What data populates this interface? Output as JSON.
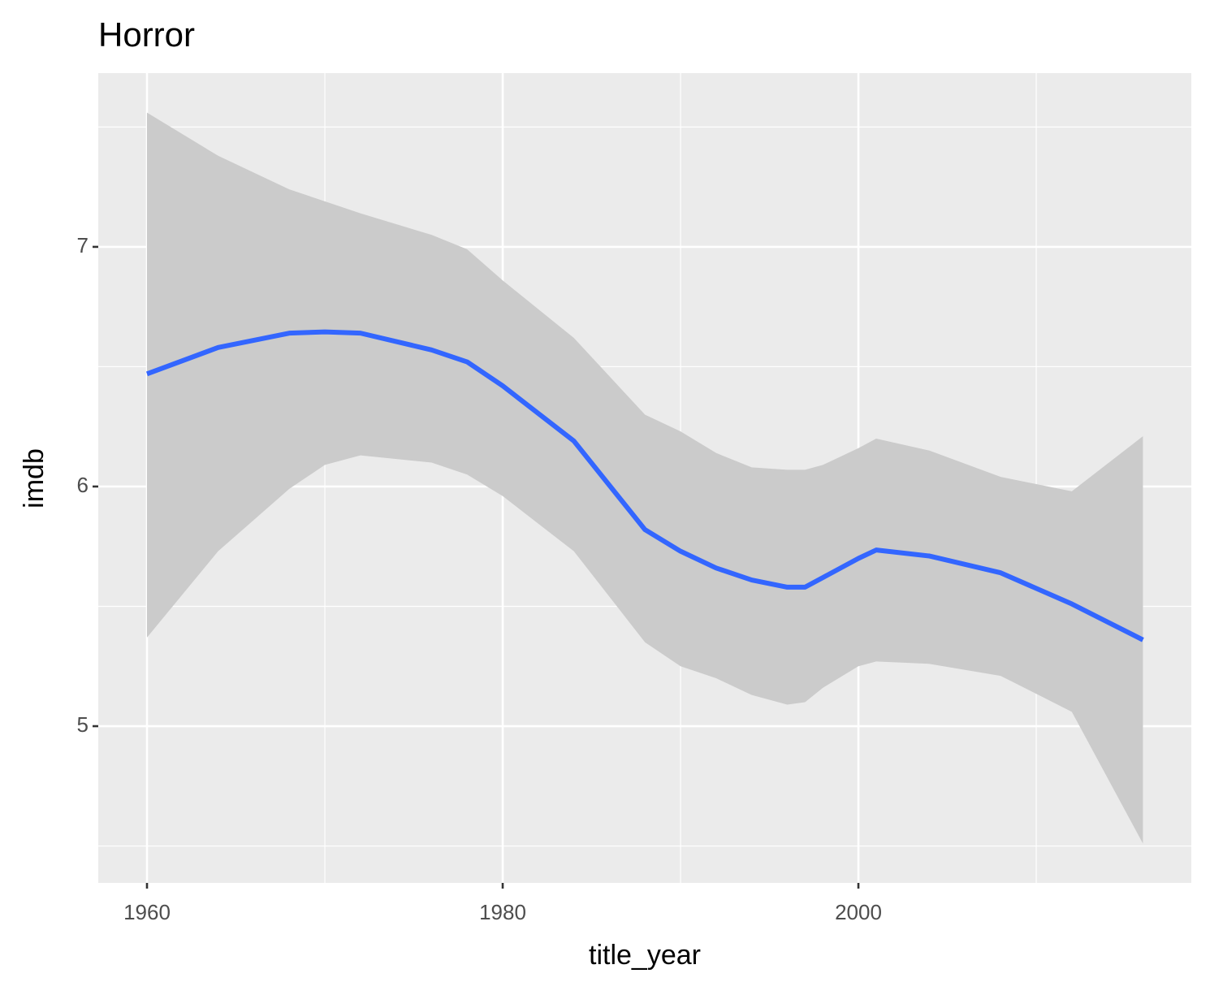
{
  "chart_data": {
    "type": "smooth",
    "title": "Horror",
    "x_label": "title_year",
    "y_label": "imdb",
    "x": [
      1960,
      1964,
      1968,
      1970,
      1972,
      1976,
      1978,
      1980,
      1984,
      1988,
      1990,
      1992,
      1994,
      1996,
      1997,
      1998,
      2000,
      2001,
      2004,
      2008,
      2012,
      2016
    ],
    "y": [
      6.47,
      6.58,
      6.64,
      6.645,
      6.64,
      6.57,
      6.52,
      6.42,
      6.19,
      5.82,
      5.73,
      5.66,
      5.61,
      5.58,
      5.58,
      5.62,
      5.7,
      5.735,
      5.71,
      5.64,
      5.51,
      5.36
    ],
    "ymin": [
      5.37,
      5.73,
      5.99,
      6.09,
      6.13,
      6.1,
      6.05,
      5.96,
      5.73,
      5.35,
      5.25,
      5.2,
      5.13,
      5.09,
      5.1,
      5.16,
      5.25,
      5.27,
      5.26,
      5.21,
      5.06,
      4.51
    ],
    "ymax": [
      7.56,
      7.38,
      7.24,
      7.19,
      7.14,
      7.05,
      6.99,
      6.86,
      6.62,
      6.3,
      6.23,
      6.14,
      6.08,
      6.07,
      6.07,
      6.09,
      6.16,
      6.2,
      6.15,
      6.04,
      5.98,
      6.21
    ],
    "color": "#3366ff",
    "band_color": "#cbcbcb",
    "xlim": [
      1957.26,
      2018.72
    ],
    "ylim": [
      4.346,
      7.725
    ],
    "xticks": [
      1960,
      1980,
      2000
    ],
    "yticks": [
      5,
      6,
      7
    ],
    "xminor": [
      1970,
      1990,
      2010
    ],
    "yminor": [
      4.5,
      5.5,
      6.5,
      7.5
    ],
    "grid": true
  }
}
